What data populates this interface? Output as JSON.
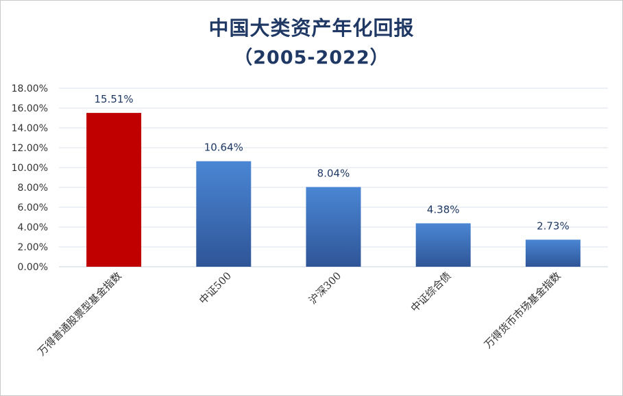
{
  "chart_data": {
    "type": "bar",
    "title": "中国大类资产年化回报",
    "subtitle": "（2005-2022）",
    "categories": [
      "万得普通股票型基金指数",
      "中证500",
      "沪深300",
      "中证综合债",
      "万得货币市场基金指数"
    ],
    "values": [
      15.51,
      10.64,
      8.04,
      4.38,
      2.73
    ],
    "data_labels": [
      "15.51%",
      "10.64%",
      "8.04%",
      "4.38%",
      "2.73%"
    ],
    "y_tick_labels": [
      "0.00%",
      "2.00%",
      "4.00%",
      "6.00%",
      "8.00%",
      "10.00%",
      "12.00%",
      "14.00%",
      "16.00%",
      "18.00%"
    ],
    "ylim": [
      0,
      18
    ],
    "grid": true,
    "legend": "none",
    "colors": {
      "highlight": "#c00000",
      "bar_top": "#4a86d4",
      "bar_bottom": "#2f5597",
      "gridline": "#dbe3ee",
      "title": "#1f3864"
    }
  }
}
